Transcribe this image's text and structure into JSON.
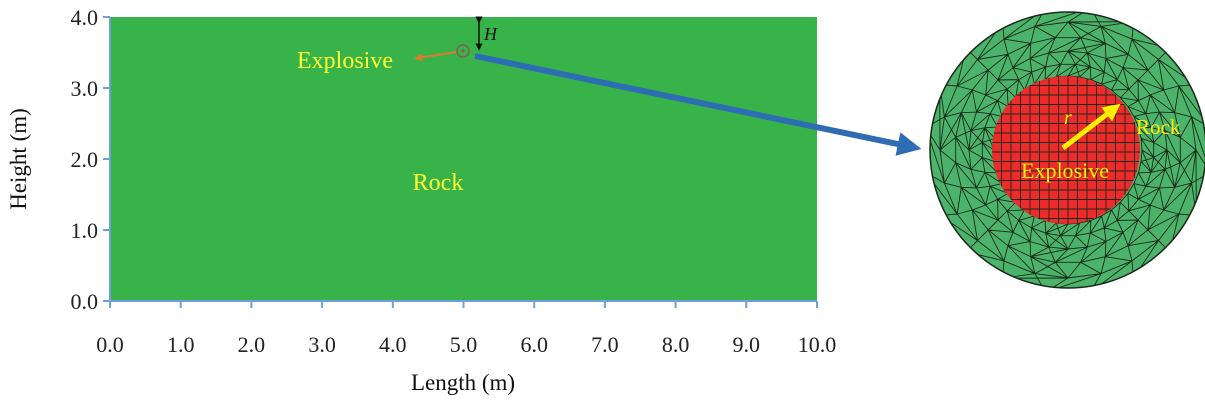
{
  "main_plot": {
    "xlabel": "Length (m)",
    "ylabel": "Height (m)",
    "x_ticks": [
      "0.0",
      "1.0",
      "2.0",
      "3.0",
      "4.0",
      "5.0",
      "6.0",
      "7.0",
      "8.0",
      "9.0",
      "10.0"
    ],
    "y_ticks": [
      "0.0",
      "1.0",
      "2.0",
      "3.0",
      "4.0"
    ],
    "xlim": [
      0,
      10
    ],
    "ylim": [
      0,
      4
    ],
    "rock_label": "Rock",
    "explosive_label": "Explosive",
    "depth_label": "H",
    "explosive_position": {
      "x": 5.0,
      "y": 3.5
    },
    "colors": {
      "rock": "#37b34a",
      "label": "#ffff33",
      "axis": "#6fa0d8",
      "arrow": "#2e6db4"
    }
  },
  "zoom_view": {
    "explosive_label": "Explosive",
    "rock_label": "Rock",
    "radius_label": "r",
    "colors": {
      "rock": "#4cb36a",
      "explosive": "#ee2b2b",
      "mesh": "#1a2a1a",
      "radius_arrow": "#ffee00"
    }
  }
}
